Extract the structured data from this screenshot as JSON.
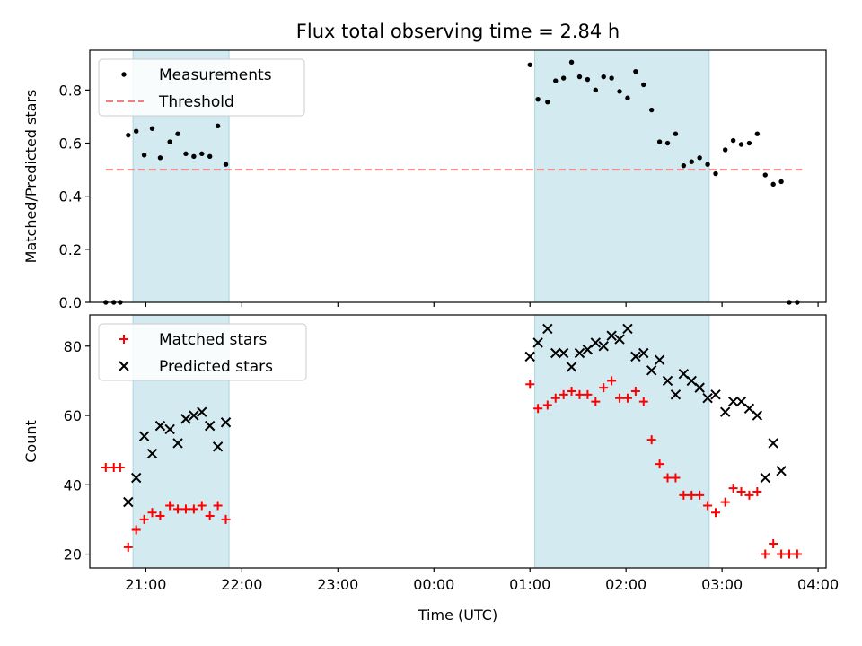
{
  "chart_data": [
    {
      "type": "scatter",
      "title": "Flux total observing time = 2.84 h",
      "xlabel": "",
      "ylabel": "Matched/Predicted stars",
      "xlim": [
        "20:25",
        "04:05"
      ],
      "ylim": [
        0,
        0.95
      ],
      "yticks": [
        "0.0",
        "0.2",
        "0.4",
        "0.6",
        "0.8"
      ],
      "shaded_ranges": [
        [
          "20:52",
          "21:52"
        ],
        [
          "01:03",
          "02:52"
        ]
      ],
      "legend": "upper-left",
      "series": [
        {
          "name": "Measurements",
          "marker": "dot",
          "color": "#000000",
          "points": [
            [
              "20:35",
              0.0
            ],
            [
              "20:40",
              0.0
            ],
            [
              "20:44",
              0.0
            ],
            [
              "20:49",
              0.63
            ],
            [
              "20:54",
              0.645
            ],
            [
              "20:59",
              0.555
            ],
            [
              "21:04",
              0.655
            ],
            [
              "21:09",
              0.545
            ],
            [
              "21:15",
              0.605
            ],
            [
              "21:20",
              0.635
            ],
            [
              "21:25",
              0.56
            ],
            [
              "21:30",
              0.55
            ],
            [
              "21:35",
              0.56
            ],
            [
              "21:40",
              0.55
            ],
            [
              "21:45",
              0.665
            ],
            [
              "21:50",
              0.52
            ],
            [
              "01:00",
              0.895
            ],
            [
              "01:05",
              0.765
            ],
            [
              "01:11",
              0.755
            ],
            [
              "01:16",
              0.835
            ],
            [
              "01:21",
              0.845
            ],
            [
              "01:26",
              0.905
            ],
            [
              "01:31",
              0.85
            ],
            [
              "01:36",
              0.84
            ],
            [
              "01:41",
              0.8
            ],
            [
              "01:46",
              0.85
            ],
            [
              "01:51",
              0.845
            ],
            [
              "01:56",
              0.795
            ],
            [
              "02:01",
              0.77
            ],
            [
              "02:06",
              0.87
            ],
            [
              "02:11",
              0.82
            ],
            [
              "02:16",
              0.725
            ],
            [
              "02:21",
              0.605
            ],
            [
              "02:26",
              0.6
            ],
            [
              "02:31",
              0.635
            ],
            [
              "02:36",
              0.515
            ],
            [
              "02:41",
              0.53
            ],
            [
              "02:46",
              0.545
            ],
            [
              "02:51",
              0.52
            ],
            [
              "02:56",
              0.485
            ],
            [
              "03:02",
              0.575
            ],
            [
              "03:07",
              0.61
            ],
            [
              "03:12",
              0.595
            ],
            [
              "03:17",
              0.6
            ],
            [
              "03:22",
              0.635
            ],
            [
              "03:27",
              0.48
            ],
            [
              "03:32",
              0.445
            ],
            [
              "03:37",
              0.455
            ],
            [
              "03:42",
              0.0
            ],
            [
              "03:47",
              0.0
            ]
          ]
        },
        {
          "name": "Threshold",
          "marker": "dashed-line",
          "color": "#f08080",
          "points": [
            [
              "20:35",
              0.5
            ],
            [
              "03:50",
              0.5
            ]
          ]
        }
      ]
    },
    {
      "type": "scatter",
      "title": "",
      "xlabel": "Time (UTC)",
      "ylabel": "Count",
      "xlim": [
        "20:25",
        "04:05"
      ],
      "ylim": [
        16,
        89
      ],
      "yticks": [
        "20",
        "40",
        "60",
        "80"
      ],
      "xticks": [
        "21:00",
        "22:00",
        "23:00",
        "00:00",
        "01:00",
        "02:00",
        "03:00",
        "04:00"
      ],
      "shaded_ranges": [
        [
          "20:52",
          "21:52"
        ],
        [
          "01:03",
          "02:52"
        ]
      ],
      "legend": "upper-left",
      "series": [
        {
          "name": "Matched stars",
          "marker": "plus",
          "color": "#ff0000",
          "points": [
            [
              "20:35",
              45
            ],
            [
              "20:40",
              45
            ],
            [
              "20:44",
              45
            ],
            [
              "20:49",
              22
            ],
            [
              "20:54",
              27
            ],
            [
              "20:59",
              30
            ],
            [
              "21:04",
              32
            ],
            [
              "21:09",
              31
            ],
            [
              "21:15",
              34
            ],
            [
              "21:20",
              33
            ],
            [
              "21:25",
              33
            ],
            [
              "21:30",
              33
            ],
            [
              "21:35",
              34
            ],
            [
              "21:40",
              31
            ],
            [
              "21:45",
              34
            ],
            [
              "21:50",
              30
            ],
            [
              "01:00",
              69
            ],
            [
              "01:05",
              62
            ],
            [
              "01:11",
              63
            ],
            [
              "01:16",
              65
            ],
            [
              "01:21",
              66
            ],
            [
              "01:26",
              67
            ],
            [
              "01:31",
              66
            ],
            [
              "01:36",
              66
            ],
            [
              "01:41",
              64
            ],
            [
              "01:46",
              68
            ],
            [
              "01:51",
              70
            ],
            [
              "01:56",
              65
            ],
            [
              "02:01",
              65
            ],
            [
              "02:06",
              67
            ],
            [
              "02:11",
              64
            ],
            [
              "02:16",
              53
            ],
            [
              "02:21",
              46
            ],
            [
              "02:26",
              42
            ],
            [
              "02:31",
              42
            ],
            [
              "02:36",
              37
            ],
            [
              "02:41",
              37
            ],
            [
              "02:46",
              37
            ],
            [
              "02:51",
              34
            ],
            [
              "02:56",
              32
            ],
            [
              "03:02",
              35
            ],
            [
              "03:07",
              39
            ],
            [
              "03:12",
              38
            ],
            [
              "03:17",
              37
            ],
            [
              "03:22",
              38
            ],
            [
              "03:27",
              20
            ],
            [
              "03:32",
              23
            ],
            [
              "03:37",
              20
            ],
            [
              "03:42",
              20
            ],
            [
              "03:47",
              20
            ]
          ]
        },
        {
          "name": "Predicted stars",
          "marker": "x",
          "color": "#000000",
          "points": [
            [
              "20:49",
              35
            ],
            [
              "20:54",
              42
            ],
            [
              "20:59",
              54
            ],
            [
              "21:04",
              49
            ],
            [
              "21:09",
              57
            ],
            [
              "21:15",
              56
            ],
            [
              "21:20",
              52
            ],
            [
              "21:25",
              59
            ],
            [
              "21:30",
              60
            ],
            [
              "21:35",
              61
            ],
            [
              "21:40",
              57
            ],
            [
              "21:45",
              51
            ],
            [
              "21:50",
              58
            ],
            [
              "01:00",
              77
            ],
            [
              "01:05",
              81
            ],
            [
              "01:11",
              85
            ],
            [
              "01:16",
              78
            ],
            [
              "01:21",
              78
            ],
            [
              "01:26",
              74
            ],
            [
              "01:31",
              78
            ],
            [
              "01:36",
              79
            ],
            [
              "01:41",
              81
            ],
            [
              "01:46",
              80
            ],
            [
              "01:51",
              83
            ],
            [
              "01:56",
              82
            ],
            [
              "02:01",
              85
            ],
            [
              "02:06",
              77
            ],
            [
              "02:11",
              78
            ],
            [
              "02:16",
              73
            ],
            [
              "02:21",
              76
            ],
            [
              "02:26",
              70
            ],
            [
              "02:31",
              66
            ],
            [
              "02:36",
              72
            ],
            [
              "02:41",
              70
            ],
            [
              "02:46",
              68
            ],
            [
              "02:51",
              65
            ],
            [
              "02:56",
              66
            ],
            [
              "03:02",
              61
            ],
            [
              "03:07",
              64
            ],
            [
              "03:12",
              64
            ],
            [
              "03:17",
              62
            ],
            [
              "03:22",
              60
            ],
            [
              "03:27",
              42
            ],
            [
              "03:32",
              52
            ],
            [
              "03:37",
              44
            ]
          ]
        }
      ]
    }
  ]
}
